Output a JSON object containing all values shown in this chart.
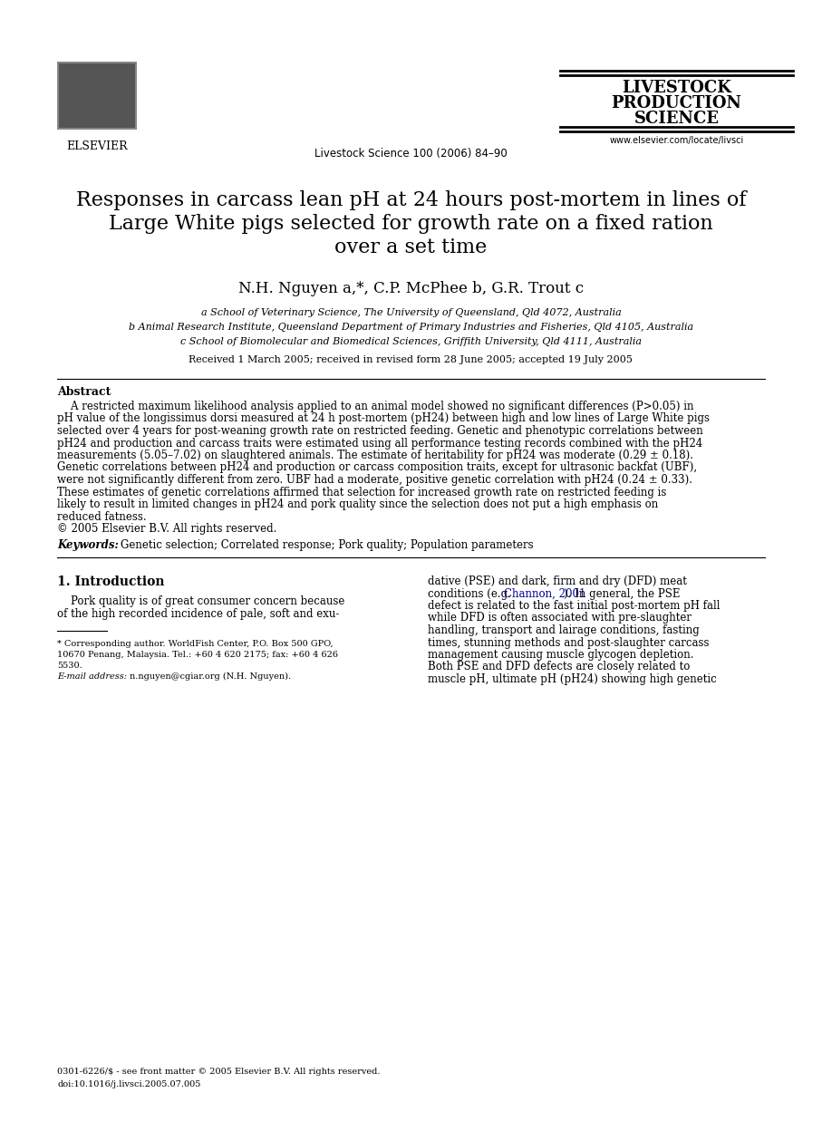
{
  "bg_color": "#ffffff",
  "page_width": 9.07,
  "page_height": 12.38,
  "journal_name_lines": [
    "LIVESTOCK",
    "PRODUCTION",
    "SCIENCE"
  ],
  "journal_cite": "Livestock Science 100 (2006) 84–90",
  "journal_url": "www.elsevier.com/locate/livsci",
  "title_line1": "Responses in carcass lean pH at 24 hours post-mortem in lines of",
  "title_line2": "Large White pigs selected for growth rate on a fixed ration",
  "title_line3": "over a set time",
  "authors": "N.H. Nguyen a,*, C.P. McPhee b, G.R. Trout c",
  "affil_a": "a School of Veterinary Science, The University of Queensland, Qld 4072, Australia",
  "affil_b": "b Animal Research Institute, Queensland Department of Primary Industries and Fisheries, Qld 4105, Australia",
  "affil_c": "c School of Biomolecular and Biomedical Sciences, Griffith University, Qld 4111, Australia",
  "received": "Received 1 March 2005; received in revised form 28 June 2005; accepted 19 July 2005",
  "abstract_heading": "Abstract",
  "abstract_para": "    A restricted maximum likelihood analysis applied to an animal model showed no significant differences (P>0.05) in pH value of the longissimus dorsi measured at 24 h post-mortem (pH24) between high and low lines of Large White pigs selected over 4 years for post-weaning growth rate on restricted feeding. Genetic and phenotypic correlations between pH24 and production and carcass traits were estimated using all performance testing records combined with the pH24 measurements (5.05–7.02) on slaughtered animals. The estimate of heritability for pH24 was moderate (0.29 ± 0.18). Genetic correlations between pH24 and production or carcass composition traits, except for ultrasonic backfat (UBF), were not significantly different from zero. UBF had a moderate, positive genetic correlation with pH24 (0.24 ± 0.33). These estimates of genetic correlations affirmed that selection for increased growth rate on restricted feeding is likely to result in limited changes in pH24 and pork quality since the selection does not put a high emphasis on reduced fatness.",
  "abstract_copy": "© 2005 Elsevier B.V. All rights reserved.",
  "keywords_label": "Keywords:",
  "keywords_text": "Genetic selection; Correlated response; Pork quality; Population parameters",
  "section1_heading": "1. Introduction",
  "intro_col1_lines": [
    "    Pork quality is of great consumer concern because",
    "of the high recorded incidence of pale, soft and exu-"
  ],
  "intro_col2_lines": [
    "dative (PSE) and dark, firm and dry (DFD) meat",
    "conditions (e.g. [LINK]Channon, 2001[/LINK]). In general, the PSE",
    "defect is related to the fast initial post-mortem pH fall",
    "while DFD is often associated with pre-slaughter",
    "handling, transport and lairage conditions, fasting",
    "times, stunning methods and post-slaughter carcass",
    "management causing muscle glycogen depletion.",
    "Both PSE and DFD defects are closely related to",
    "muscle pH, ultimate pH (pH24) showing high genetic"
  ],
  "footnote_line": "* Corresponding author. WorldFish Center, P.O. Box 500 GPO,",
  "footnote_line2": "10670 Penang, Malaysia. Tel.: +60 4 620 2175; fax: +60 4 626",
  "footnote_line3": "5530.",
  "footnote_email_label": "E-mail address:",
  "footnote_email": "n.nguyen@cgiar.org (N.H. Nguyen).",
  "bottom_note1": "0301-6226/$ - see front matter © 2005 Elsevier B.V. All rights reserved.",
  "bottom_note2": "doi:10.1016/j.livsci.2005.07.005",
  "link_color": "#000099",
  "rule_color": "#000000"
}
